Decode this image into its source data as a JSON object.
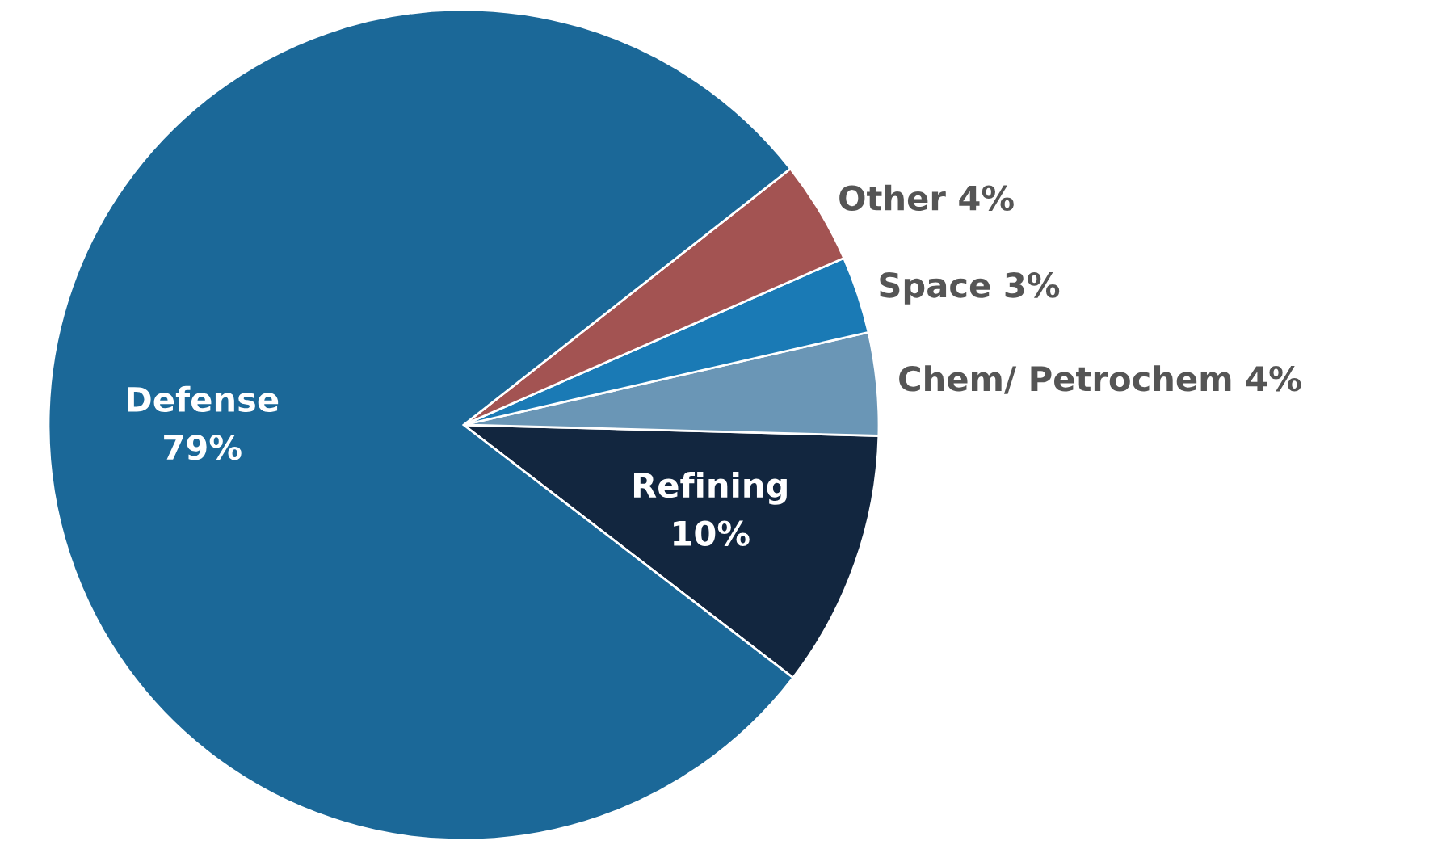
{
  "chart_data": {
    "type": "pie",
    "categories": [
      "Refining",
      "Chem/ Petrochem",
      "Space",
      "Other",
      "Defense"
    ],
    "values": [
      10,
      4,
      3,
      4,
      79
    ],
    "value_labels": [
      "10%",
      "4%",
      "3%",
      "4%",
      "79%"
    ],
    "colors": [
      "#12263f",
      "#6a96b6",
      "#1a7ab5",
      "#a35352",
      "#1b6898"
    ],
    "legend": false
  }
}
